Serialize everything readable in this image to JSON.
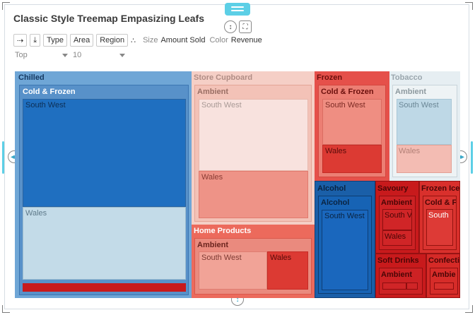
{
  "title": "Classic Style Treemap Empasizing Leafs",
  "toolbar": {
    "type_label": "Type",
    "area_label": "Area",
    "region_label": "Region",
    "size_label": "Size",
    "size_value": "Amount Sold",
    "color_label": "Color",
    "color_value": "Revenue"
  },
  "filters": {
    "top_value": "Top",
    "count_value": "10"
  },
  "colors": {
    "blue_dark": "#1f6fc0",
    "blue_light": "#c3dbe8",
    "red_dark": "#c81a1c",
    "red_light": "#f2b3a8",
    "accent_handle": "#5ccfe6"
  },
  "icons": {
    "add": "plus-arrow-icon",
    "sort": "sort-download-icon",
    "scatter": "scatter-dots-icon",
    "collapse": "collapse-vertical-icon",
    "expand": "fullscreen-icon"
  },
  "treemap": {
    "chilled": {
      "label": "Chilled",
      "group": "Cold & Frozen",
      "leaf1": "South West",
      "leaf2": "Wales"
    },
    "store_cupboard": {
      "label": "Store Cupboard",
      "group": "Ambient",
      "leaf1": "South West",
      "leaf2": "Wales"
    },
    "home_products": {
      "label": "Home Products",
      "group": "Ambient",
      "leaf1": "South West",
      "leaf2": "Wales"
    },
    "frozen": {
      "label": "Frozen",
      "group": "Cold & Frozen",
      "leaf1": "South West",
      "leaf2": "Wales"
    },
    "tobacco": {
      "label": "Tobacco",
      "group": "Ambient",
      "leaf1": "South West",
      "leaf2": "Wales"
    },
    "alcohol": {
      "label": "Alcohol",
      "group": "Alcohol",
      "leaf1": "South West"
    },
    "savoury": {
      "label": "Savoury",
      "group": "Ambient",
      "leaf1": "South V",
      "leaf2": "Wales"
    },
    "frozen_ice": {
      "label": "Frozen Ice",
      "group": "Cold & F",
      "leaf1": "South"
    },
    "soft_drinks": {
      "label": "Soft Drinks",
      "group": "Ambient"
    },
    "confectionery": {
      "label": "Confecti",
      "group": "Ambie"
    }
  }
}
